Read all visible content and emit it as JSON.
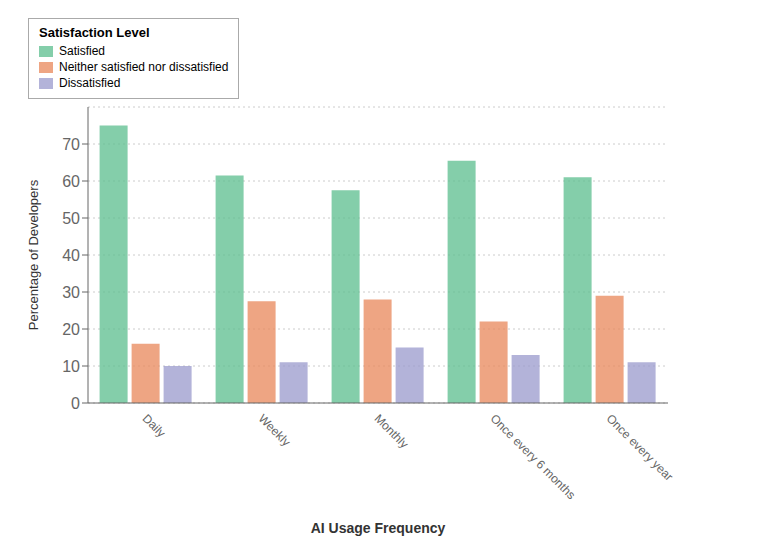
{
  "chart_data": {
    "type": "bar",
    "categories": [
      "Daily",
      "Weekly",
      "Monthly",
      "Once every 6 months",
      "Once every year"
    ],
    "series": [
      {
        "name": "Satisfied",
        "color": "#5BBD8E",
        "values": [
          75,
          61.5,
          57.5,
          65.5,
          61
        ]
      },
      {
        "name": "Neither satisfied nor dissatisfied",
        "color": "#E8875A",
        "values": [
          16,
          27.5,
          28,
          22,
          29
        ]
      },
      {
        "name": "Dissatisfied",
        "color": "#9999CC",
        "values": [
          10,
          11,
          15,
          13,
          11
        ]
      }
    ],
    "xlabel": "AI Usage Frequency",
    "ylabel": "Percentage of Developers",
    "legend_title": "Satisfaction Level",
    "ylim": [
      0,
      80
    ],
    "yticks": [
      0,
      10,
      20,
      30,
      40,
      50,
      60,
      70
    ],
    "grid": true,
    "legend": "upper right"
  }
}
